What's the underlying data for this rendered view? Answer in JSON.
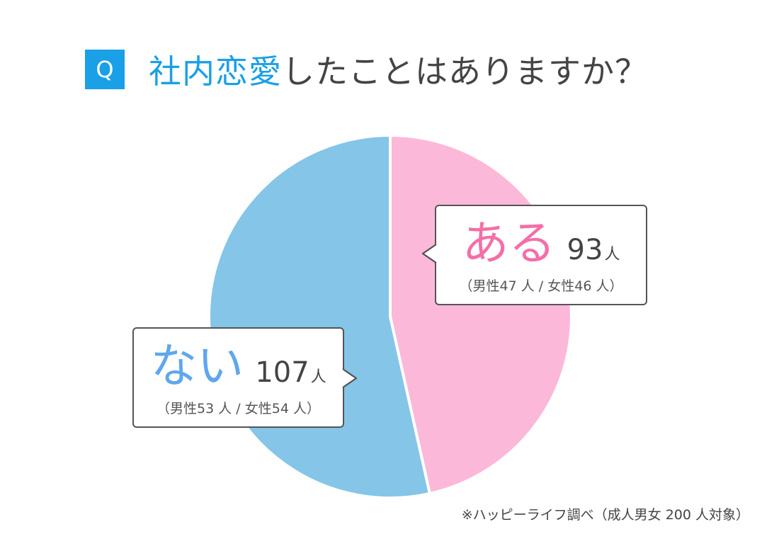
{
  "question": {
    "badge": "Q",
    "title_accent": "社内恋愛",
    "title_rest": "したことはありますか？"
  },
  "chart_data": {
    "type": "pie",
    "slices": [
      {
        "label": "ある",
        "value": 93,
        "unit": "人",
        "breakdown": "（男性47 人 / 女性46 人）",
        "color": "#fbb8d9"
      },
      {
        "label": "ない",
        "value": 107,
        "unit": "人",
        "breakdown": "（男性53 人 / 女性54 人）",
        "color": "#84c5e8"
      }
    ],
    "start_angle": "12 o'clock",
    "direction": "clockwise"
  },
  "footnote": "※ハッピーライフ調べ（成人男女 200 人対象）"
}
